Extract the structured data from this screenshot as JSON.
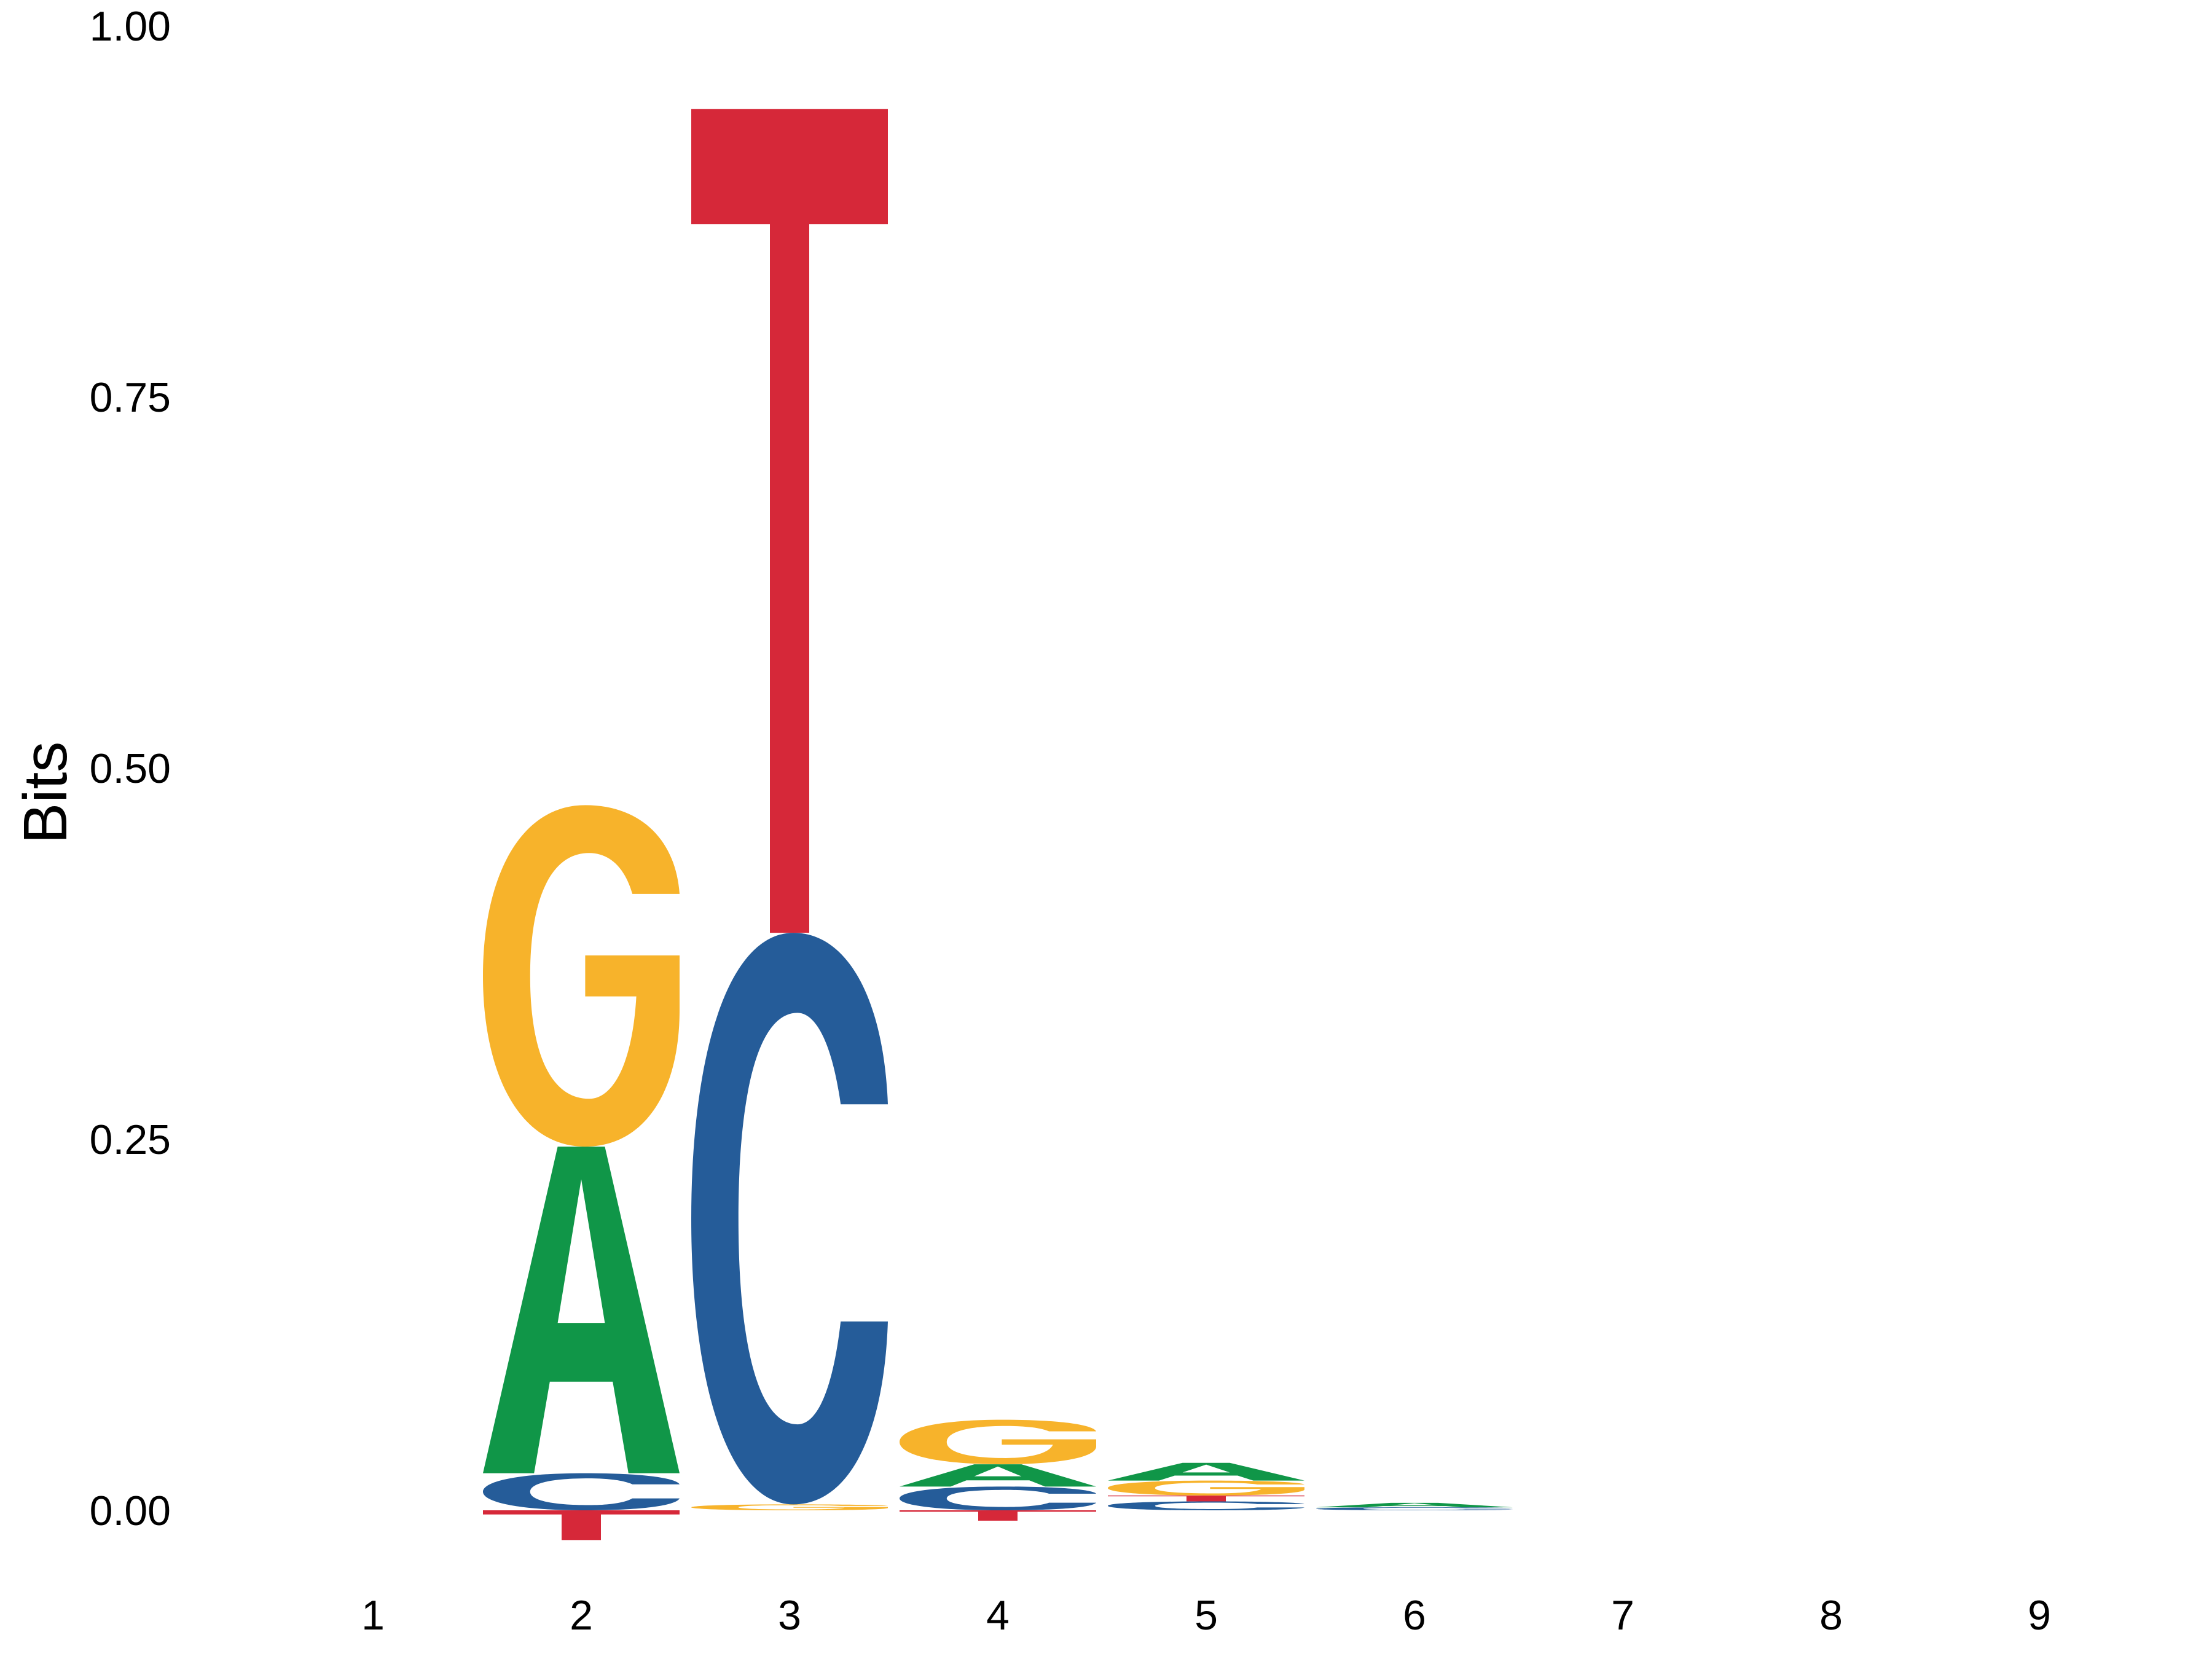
{
  "chart_data": {
    "type": "sequence-logo",
    "ylabel": "Bits",
    "xlabel": "",
    "ylim": [
      0,
      1.0
    ],
    "yticks": [
      "0.00",
      "0.25",
      "0.50",
      "0.75",
      "1.00"
    ],
    "positions": [
      "1",
      "2",
      "3",
      "4",
      "5",
      "6",
      "7",
      "8",
      "9"
    ],
    "colors": {
      "A": "#109648",
      "C": "#255C99",
      "G": "#F7B32B",
      "T": "#D62839"
    },
    "stacks": [
      [],
      [
        {
          "letter": "T",
          "bits": -0.02
        },
        {
          "letter": "C",
          "bits": 0.025
        },
        {
          "letter": "A",
          "bits": 0.22
        },
        {
          "letter": "G",
          "bits": 0.23
        }
      ],
      [
        {
          "letter": "G",
          "bits": 0.004
        },
        {
          "letter": "C",
          "bits": 0.385
        },
        {
          "letter": "T",
          "bits": 0.555
        }
      ],
      [
        {
          "letter": "T",
          "bits": -0.007
        },
        {
          "letter": "C",
          "bits": 0.016
        },
        {
          "letter": "A",
          "bits": 0.015
        },
        {
          "letter": "G",
          "bits": 0.03
        }
      ],
      [
        {
          "letter": "C",
          "bits": 0.006
        },
        {
          "letter": "T",
          "bits": 0.004
        },
        {
          "letter": "G",
          "bits": 0.01
        },
        {
          "letter": "A",
          "bits": 0.012
        }
      ],
      [
        {
          "letter": "C",
          "bits": 0.002
        },
        {
          "letter": "A",
          "bits": 0.003
        }
      ],
      [],
      [],
      []
    ]
  }
}
